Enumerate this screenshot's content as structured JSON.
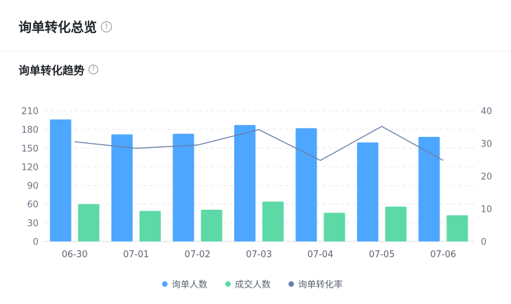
{
  "header": {
    "title": "询单转化总览",
    "info_glyph": "!"
  },
  "section": {
    "title": "询单转化趋势",
    "info_glyph": "!"
  },
  "chart_data": {
    "type": "bar",
    "categories": [
      "06-30",
      "07-01",
      "07-02",
      "07-03",
      "07-04",
      "07-05",
      "07-06"
    ],
    "series": [
      {
        "name": "询单人数",
        "type": "bar",
        "axis": "left",
        "color": "#4da6ff",
        "values": [
          196,
          172,
          173,
          187,
          182,
          159,
          168
        ]
      },
      {
        "name": "成交人数",
        "type": "bar",
        "axis": "left",
        "color": "#5cd9a6",
        "values": [
          60,
          49,
          51,
          64,
          46,
          56,
          42
        ]
      },
      {
        "name": "询单转化率",
        "type": "line",
        "axis": "right",
        "color": "#6b7fa8",
        "values": [
          30.5,
          28.5,
          29.5,
          34.2,
          24.8,
          35.2,
          24.8
        ]
      }
    ],
    "y_left": {
      "ticks": [
        0,
        30,
        60,
        90,
        120,
        150,
        180,
        210
      ],
      "min": 0,
      "max": 210
    },
    "y_right": {
      "ticks": [
        0,
        10,
        20,
        30,
        40
      ],
      "min": 0,
      "max": 40
    },
    "grid": true,
    "legend_position": "bottom-center"
  }
}
